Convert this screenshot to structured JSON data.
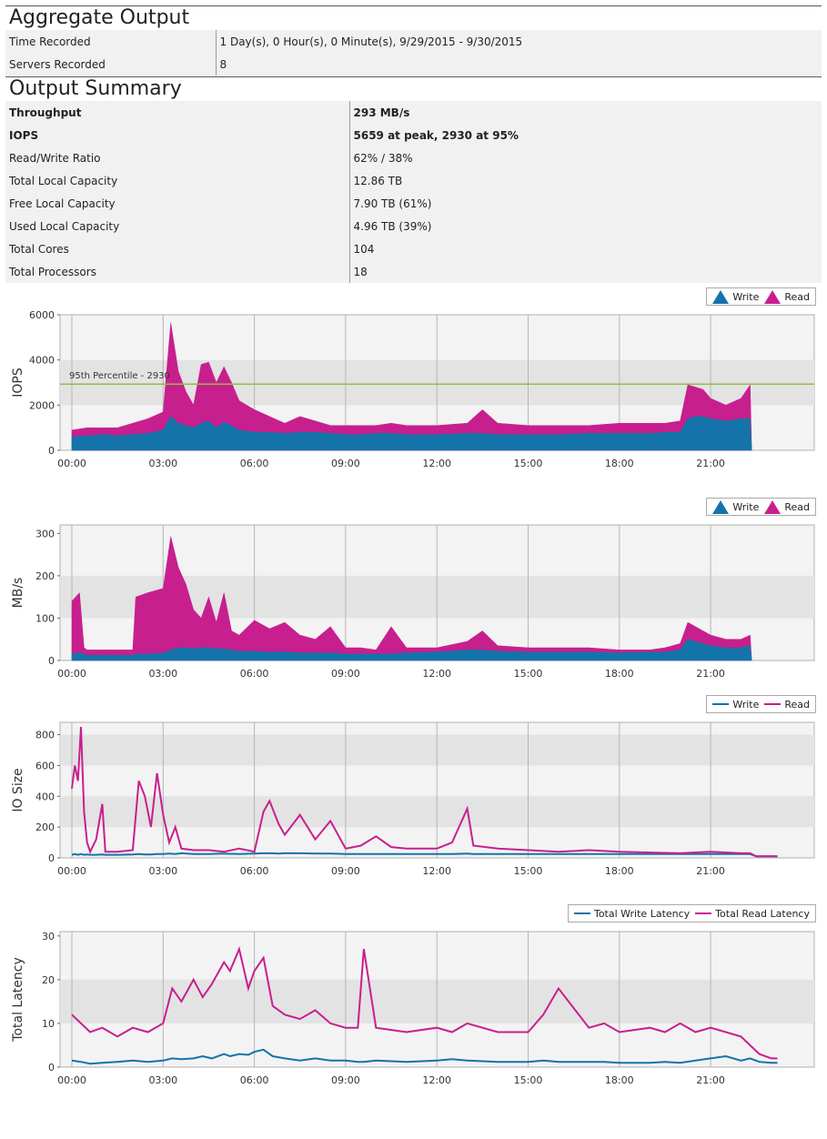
{
  "aggregate": {
    "title": "Aggregate Output",
    "rows": [
      {
        "label": "Time Recorded",
        "value": "1 Day(s), 0 Hour(s), 0 Minute(s), 9/29/2015 - 9/30/2015"
      },
      {
        "label": "Servers Recorded",
        "value": "8"
      }
    ]
  },
  "summary": {
    "title": "Output Summary",
    "rows": [
      {
        "label": "Throughput",
        "value": "293 MB/s",
        "bold": true
      },
      {
        "label": "IOPS",
        "value": "5659 at peak, 2930 at 95%",
        "bold": true
      },
      {
        "label": "Read/Write Ratio",
        "value": "62% / 38%"
      },
      {
        "label": "Total Local Capacity",
        "value": "12.86 TB"
      },
      {
        "label": "Free Local Capacity",
        "value": "7.90 TB (61%)"
      },
      {
        "label": "Used Local Capacity",
        "value": "4.96 TB (39%)"
      },
      {
        "label": "Total Cores",
        "value": "104"
      },
      {
        "label": "Total Processors",
        "value": "18"
      }
    ]
  },
  "colors": {
    "write": "#1473a9",
    "read": "#c81f8e",
    "percentile": "#8cbf3f"
  },
  "chart_data": [
    {
      "type": "area",
      "ylabel": "IOPS",
      "ylim": [
        0,
        6000
      ],
      "yticks": [
        "0",
        "2000",
        "4000",
        "6000"
      ],
      "xticks": [
        "00:00",
        "03:00",
        "06:00",
        "09:00",
        "12:00",
        "15:00",
        "18:00",
        "21:00"
      ],
      "legend": [
        {
          "name": "Write",
          "style": "triangle"
        },
        {
          "name": "Read",
          "style": "triangle"
        }
      ],
      "reference_line": {
        "value": 2930,
        "label": "95th Percentile - 2930"
      },
      "x_hours": [
        0,
        0.5,
        1,
        1.5,
        2,
        2.5,
        3,
        3.25,
        3.5,
        3.75,
        4,
        4.25,
        4.5,
        4.75,
        5,
        5.25,
        5.5,
        6,
        6.5,
        7,
        7.5,
        8,
        8.5,
        9,
        9.5,
        10,
        10.5,
        11,
        11.5,
        12,
        13,
        13.5,
        14,
        15,
        16,
        17,
        18,
        19,
        19.5,
        20,
        20.25,
        20.5,
        20.75,
        21,
        21.5,
        22,
        22.3,
        22.35
      ],
      "series": [
        {
          "name": "Write",
          "values": [
            600,
            650,
            700,
            650,
            700,
            750,
            900,
            1500,
            1200,
            1100,
            1000,
            1200,
            1300,
            1000,
            1250,
            1100,
            900,
            800,
            800,
            750,
            800,
            800,
            750,
            700,
            700,
            750,
            750,
            700,
            700,
            700,
            750,
            750,
            700,
            700,
            700,
            750,
            750,
            750,
            800,
            800,
            1400,
            1500,
            1500,
            1400,
            1300,
            1400,
            1400,
            0
          ]
        },
        {
          "name": "Read",
          "values": [
            900,
            1000,
            1000,
            1000,
            1200,
            1400,
            1700,
            5659,
            3500,
            2600,
            2000,
            3800,
            3900,
            3000,
            3700,
            3000,
            2200,
            1800,
            1500,
            1200,
            1500,
            1300,
            1100,
            1100,
            1100,
            1100,
            1200,
            1100,
            1100,
            1100,
            1200,
            1800,
            1200,
            1100,
            1100,
            1100,
            1200,
            1200,
            1200,
            1300,
            2900,
            2800,
            2700,
            2300,
            2000,
            2300,
            2900,
            0
          ]
        }
      ]
    },
    {
      "type": "area",
      "ylabel": "MB/s",
      "ylim": [
        0,
        320
      ],
      "yticks": [
        "0",
        "100",
        "200",
        "300"
      ],
      "xticks": [
        "00:00",
        "03:00",
        "06:00",
        "09:00",
        "12:00",
        "15:00",
        "18:00",
        "21:00"
      ],
      "legend": [
        {
          "name": "Write",
          "style": "triangle"
        },
        {
          "name": "Read",
          "style": "triangle"
        }
      ],
      "x_hours": [
        0,
        0.25,
        0.4,
        0.5,
        1,
        1.5,
        2,
        2.1,
        2.5,
        3,
        3.25,
        3.5,
        3.75,
        4,
        4.25,
        4.5,
        4.75,
        5,
        5.25,
        5.5,
        6,
        6.5,
        7,
        7.5,
        8,
        8.5,
        9,
        9.5,
        10,
        10.5,
        11,
        12,
        13,
        13.5,
        14,
        15,
        16,
        17,
        18,
        19,
        19.5,
        20,
        20.25,
        20.5,
        20.75,
        21,
        21.5,
        22,
        22.3,
        22.35
      ],
      "series": [
        {
          "name": "Write",
          "values": [
            15,
            18,
            15,
            12,
            12,
            12,
            12,
            15,
            15,
            18,
            25,
            30,
            30,
            28,
            30,
            30,
            28,
            28,
            25,
            22,
            22,
            20,
            20,
            18,
            18,
            18,
            15,
            15,
            15,
            15,
            18,
            20,
            25,
            25,
            22,
            20,
            20,
            20,
            18,
            20,
            20,
            25,
            50,
            45,
            40,
            35,
            30,
            30,
            35,
            0
          ]
        },
        {
          "name": "Read",
          "values": [
            140,
            160,
            30,
            25,
            25,
            25,
            25,
            150,
            160,
            170,
            293,
            220,
            180,
            120,
            100,
            150,
            90,
            160,
            70,
            60,
            95,
            75,
            90,
            60,
            50,
            80,
            30,
            30,
            25,
            80,
            30,
            30,
            45,
            70,
            35,
            30,
            30,
            30,
            25,
            25,
            30,
            40,
            90,
            80,
            70,
            60,
            50,
            50,
            60,
            0
          ]
        }
      ]
    },
    {
      "type": "line",
      "ylabel": "IO Size",
      "ylim": [
        0,
        880
      ],
      "yticks": [
        "0",
        "200",
        "400",
        "600",
        "800"
      ],
      "xticks": [
        "00:00",
        "03:00",
        "06:00",
        "09:00",
        "12:00",
        "15:00",
        "18:00",
        "21:00"
      ],
      "legend": [
        {
          "name": "Write",
          "style": "line"
        },
        {
          "name": "Read",
          "style": "line"
        }
      ],
      "x_hours": [
        0,
        0.1,
        0.2,
        0.3,
        0.4,
        0.5,
        0.6,
        0.8,
        1,
        1.1,
        1.2,
        1.5,
        2,
        2.2,
        2.4,
        2.6,
        2.8,
        3,
        3.2,
        3.4,
        3.6,
        4,
        4.5,
        5,
        5.5,
        6,
        6.3,
        6.5,
        6.8,
        7,
        7.5,
        8,
        8.5,
        9,
        9.5,
        10,
        10.5,
        11,
        12,
        12.5,
        13,
        13.2,
        14,
        15,
        16,
        17,
        18,
        19,
        20,
        21,
        22,
        22.3,
        22.5,
        23.2
      ],
      "series": [
        {
          "name": "Write",
          "values": [
            20,
            25,
            20,
            25,
            20,
            22,
            20,
            20,
            22,
            20,
            20,
            20,
            22,
            25,
            22,
            22,
            25,
            25,
            28,
            25,
            30,
            25,
            25,
            28,
            25,
            28,
            30,
            30,
            28,
            30,
            30,
            28,
            28,
            25,
            25,
            25,
            25,
            25,
            25,
            25,
            28,
            25,
            25,
            25,
            25,
            25,
            25,
            25,
            25,
            25,
            25,
            25,
            10,
            10
          ]
        },
        {
          "name": "Read",
          "values": [
            450,
            600,
            500,
            850,
            300,
            100,
            40,
            120,
            350,
            40,
            40,
            40,
            50,
            500,
            400,
            200,
            550,
            280,
            100,
            200,
            60,
            50,
            50,
            40,
            60,
            40,
            300,
            370,
            220,
            150,
            280,
            120,
            240,
            60,
            80,
            140,
            70,
            60,
            60,
            100,
            320,
            80,
            60,
            50,
            40,
            50,
            40,
            35,
            30,
            40,
            30,
            30,
            10,
            10
          ]
        }
      ]
    },
    {
      "type": "line",
      "ylabel": "Total Latency",
      "ylim": [
        0,
        31
      ],
      "yticks": [
        "0",
        "10",
        "20",
        "30"
      ],
      "xticks": [
        "00:00",
        "03:00",
        "06:00",
        "09:00",
        "12:00",
        "15:00",
        "18:00",
        "21:00"
      ],
      "legend": [
        {
          "name": "Total Write Latency",
          "style": "line"
        },
        {
          "name": "Total Read Latency",
          "style": "line"
        }
      ],
      "x_hours": [
        0,
        0.3,
        0.6,
        1,
        1.5,
        2,
        2.5,
        3,
        3.3,
        3.6,
        4,
        4.3,
        4.6,
        5,
        5.2,
        5.5,
        5.8,
        6,
        6.3,
        6.6,
        7,
        7.5,
        8,
        8.5,
        9,
        9.4,
        9.6,
        10,
        11,
        12,
        12.5,
        13,
        14,
        15,
        15.5,
        16,
        17,
        17.5,
        18,
        19,
        19.5,
        20,
        20.5,
        21,
        21.5,
        22,
        22.3,
        22.6,
        23,
        23.2
      ],
      "series": [
        {
          "name": "Total Write Latency",
          "values": [
            1.5,
            1.2,
            0.8,
            1,
            1.2,
            1.5,
            1.2,
            1.5,
            2,
            1.8,
            2,
            2.5,
            2,
            3,
            2.5,
            3,
            2.8,
            3.5,
            4,
            2.5,
            2,
            1.5,
            2,
            1.5,
            1.5,
            1.2,
            1.2,
            1.5,
            1.2,
            1.5,
            1.8,
            1.5,
            1.2,
            1.2,
            1.5,
            1.2,
            1.2,
            1.2,
            1,
            1,
            1.2,
            1,
            1.5,
            2,
            2.5,
            1.5,
            2,
            1.2,
            1,
            1
          ]
        },
        {
          "name": "Total Read Latency",
          "values": [
            12,
            10,
            8,
            9,
            7,
            9,
            8,
            10,
            18,
            15,
            20,
            16,
            19,
            24,
            22,
            27,
            18,
            22,
            25,
            14,
            12,
            11,
            13,
            10,
            9,
            9,
            27,
            9,
            8,
            9,
            8,
            10,
            8,
            8,
            12,
            18,
            9,
            10,
            8,
            9,
            8,
            10,
            8,
            9,
            8,
            7,
            5,
            3,
            2,
            2
          ]
        }
      ]
    }
  ]
}
